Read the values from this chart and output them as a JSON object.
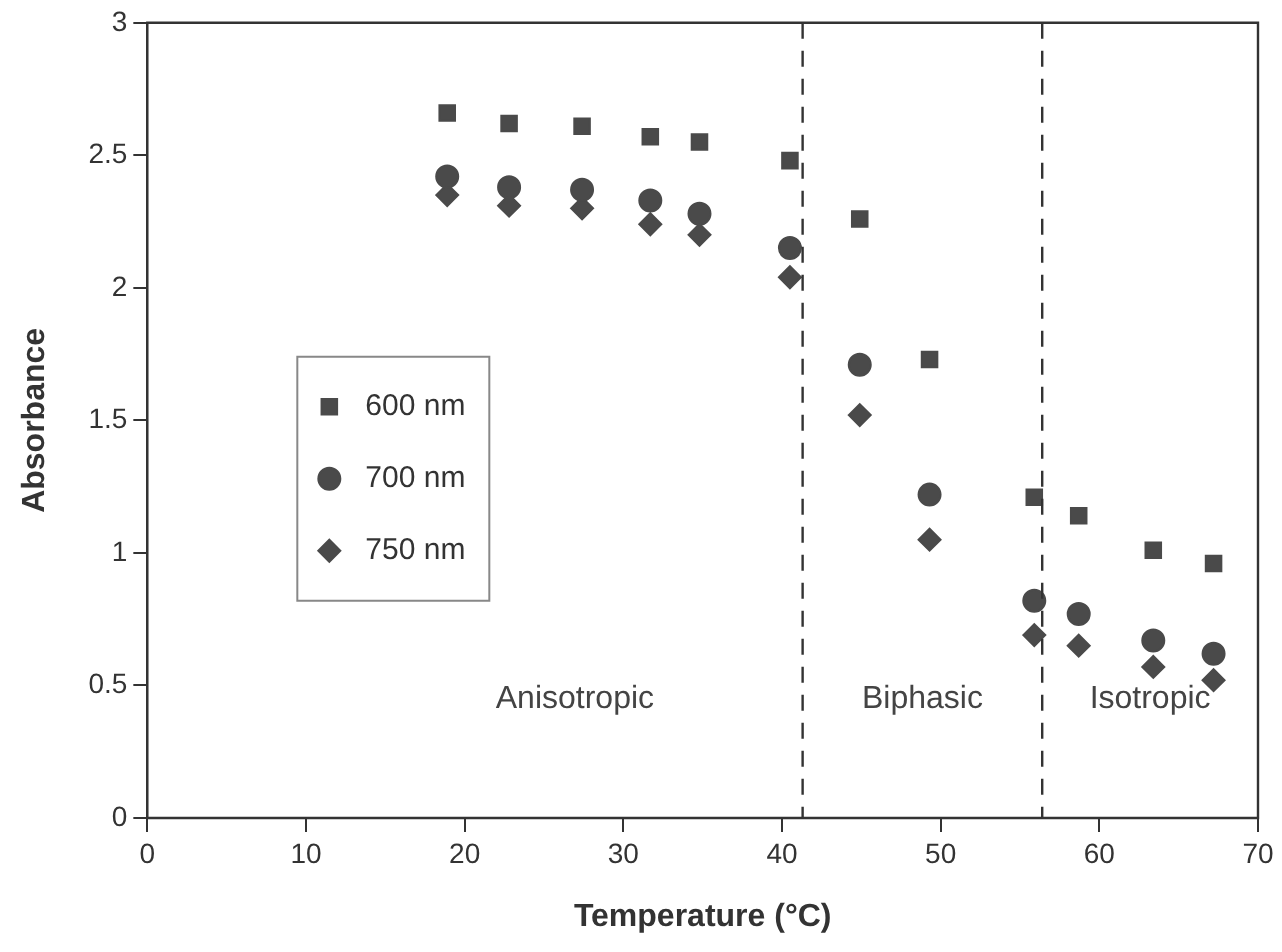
{
  "chart_data": {
    "type": "scatter",
    "xlabel": "Temperature (°C)",
    "ylabel": "Absorbance",
    "x": [
      18.9,
      22.8,
      27.4,
      31.7,
      34.8,
      40.5,
      44.9,
      49.3,
      55.9,
      58.7,
      63.4,
      67.2
    ],
    "series": [
      {
        "name": "600 nm",
        "color": "#4a4a4a",
        "marker": "square",
        "values": [
          2.66,
          2.62,
          2.61,
          2.57,
          2.55,
          2.48,
          2.26,
          1.73,
          1.21,
          1.14,
          1.01,
          0.96
        ]
      },
      {
        "name": "700 nm",
        "color": "#4a4a4a",
        "marker": "circle",
        "values": [
          2.42,
          2.38,
          2.37,
          2.33,
          2.28,
          2.15,
          1.71,
          1.22,
          0.82,
          0.77,
          0.67,
          0.62
        ]
      },
      {
        "name": "750 nm",
        "color": "#4a4a4a",
        "marker": "diamond",
        "values": [
          2.35,
          2.31,
          2.3,
          2.24,
          2.2,
          2.04,
          1.52,
          1.05,
          0.69,
          0.65,
          0.57,
          0.52
        ]
      }
    ],
    "xlim": [
      0,
      70
    ],
    "xticks": [
      0,
      10,
      20,
      30,
      40,
      50,
      60,
      70
    ],
    "ylim": [
      0,
      3
    ],
    "yticks": [
      0,
      0.5,
      1,
      1.5,
      2,
      2.5,
      3
    ],
    "grid": false,
    "legend": "left",
    "ref_lines": [
      {
        "axis": "x",
        "value": 41.3,
        "color": "#333333",
        "line_style": "dashed"
      },
      {
        "axis": "x",
        "value": 56.4,
        "color": "#333333",
        "line_style": "dashed"
      }
    ],
    "annotations": [
      "Anisotropic",
      "Biphasic",
      "Isotropic"
    ]
  }
}
